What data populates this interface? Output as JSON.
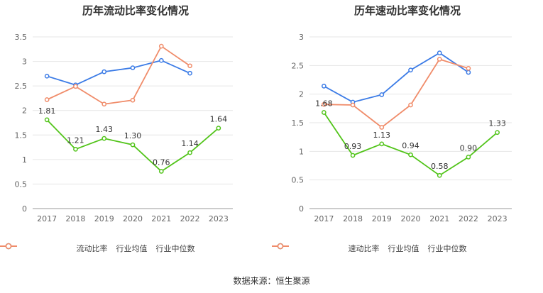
{
  "source_text": "数据来源：恒生聚源",
  "chart_data": [
    {
      "type": "line",
      "title": "历年流动比率变化情况",
      "xlabel": "",
      "ylabel": "",
      "x": [
        "2017",
        "2018",
        "2019",
        "2020",
        "2021",
        "2022",
        "2023"
      ],
      "ylim": [
        0,
        3.5
      ],
      "yticks": [
        "0",
        "0.5",
        "1",
        "1.5",
        "2",
        "2.5",
        "3",
        "3.5"
      ],
      "grid": true,
      "legend_position": "bottom",
      "series": [
        {
          "name": "流动比率",
          "color": "#52c41a",
          "labeled": true,
          "values": [
            1.81,
            1.21,
            1.43,
            1.3,
            0.76,
            1.14,
            1.64
          ],
          "labels": [
            "1.81",
            "1.21",
            "1.43",
            "1.30",
            "0.76",
            "1.14",
            "1.64"
          ]
        },
        {
          "name": "行业均值",
          "color": "#3b7be6",
          "labeled": false,
          "values": [
            2.7,
            2.52,
            2.79,
            2.87,
            3.02,
            2.76,
            null
          ]
        },
        {
          "name": "行业中位数",
          "color": "#f08c6a",
          "labeled": false,
          "values": [
            2.22,
            2.49,
            2.13,
            2.21,
            3.31,
            2.91,
            null
          ]
        }
      ]
    },
    {
      "type": "line",
      "title": "历年速动比率变化情况",
      "xlabel": "",
      "ylabel": "",
      "x": [
        "2017",
        "2018",
        "2019",
        "2020",
        "2021",
        "2022",
        "2023"
      ],
      "ylim": [
        0,
        3
      ],
      "yticks": [
        "0",
        "0.5",
        "1",
        "1.5",
        "2",
        "2.5",
        "3"
      ],
      "grid": true,
      "legend_position": "bottom",
      "series": [
        {
          "name": "速动比率",
          "color": "#52c41a",
          "labeled": true,
          "values": [
            1.68,
            0.93,
            1.13,
            0.94,
            0.58,
            0.9,
            1.33
          ],
          "labels": [
            "1.68",
            "0.93",
            "1.13",
            "0.94",
            "0.58",
            "0.90",
            "1.33"
          ]
        },
        {
          "name": "行业均值",
          "color": "#3b7be6",
          "labeled": false,
          "values": [
            2.14,
            1.86,
            1.99,
            2.42,
            2.72,
            2.38,
            null
          ]
        },
        {
          "name": "行业中位数",
          "color": "#f08c6a",
          "labeled": false,
          "values": [
            1.82,
            1.81,
            1.42,
            1.81,
            2.61,
            2.45,
            null
          ]
        }
      ]
    }
  ]
}
